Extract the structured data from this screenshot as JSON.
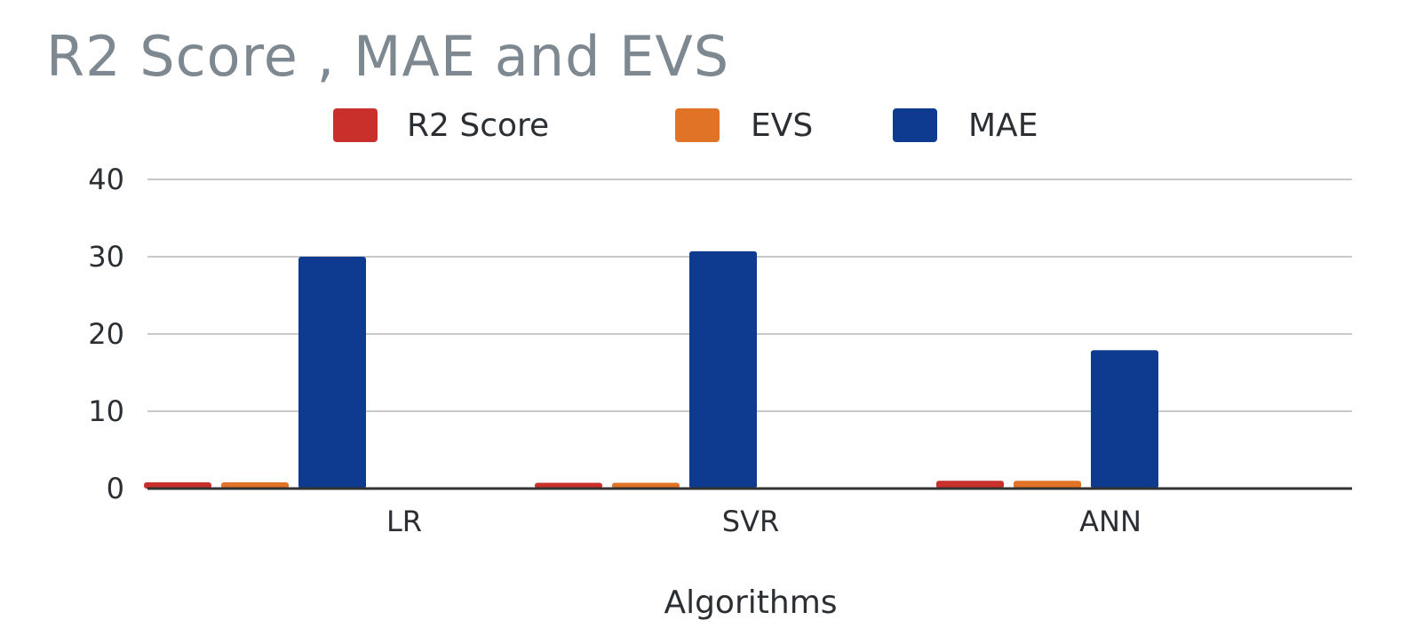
{
  "chart_data": {
    "type": "bar",
    "title": "R2 Score , MAE and EVS",
    "xlabel": "Algorithms",
    "ylabel": "",
    "categories": [
      "LR",
      "SVR",
      "ANN"
    ],
    "series": [
      {
        "name": "R2 Score",
        "color": "#c9302c",
        "values": [
          0.8,
          0.75,
          1.0
        ]
      },
      {
        "name": "EVS",
        "color": "#e07325",
        "values": [
          0.8,
          0.75,
          1.0
        ]
      },
      {
        "name": "MAE",
        "color": "#0e3b8f",
        "values": [
          30.0,
          30.7,
          17.9
        ]
      }
    ],
    "ylim": [
      0,
      40
    ],
    "yticks": [
      "0",
      "10",
      "20",
      "30",
      "40"
    ],
    "grid": true,
    "legend_position": "top"
  }
}
